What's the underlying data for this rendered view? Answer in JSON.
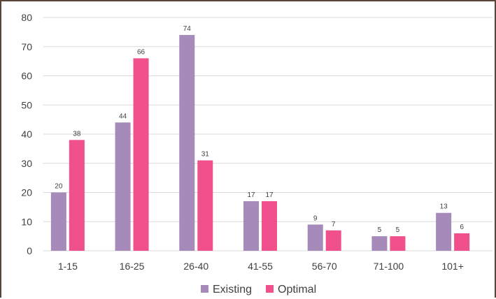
{
  "chart_data": {
    "type": "bar",
    "categories": [
      "1-15",
      "16-25",
      "26-40",
      "41-55",
      "56-70",
      "71-100",
      "101+"
    ],
    "series": [
      {
        "name": "Existing",
        "values": [
          20,
          44,
          74,
          17,
          9,
          5,
          13
        ],
        "color": "#a68aba"
      },
      {
        "name": "Optimal",
        "values": [
          38,
          66,
          31,
          17,
          7,
          5,
          6
        ],
        "color": "#f0508c"
      }
    ],
    "title": "",
    "xlabel": "",
    "ylabel": "",
    "ylim": [
      0,
      80
    ],
    "yticks": [
      0,
      10,
      20,
      30,
      40,
      50,
      60,
      70,
      80
    ],
    "grid": true,
    "legend": "bottom",
    "data_labels": true
  }
}
